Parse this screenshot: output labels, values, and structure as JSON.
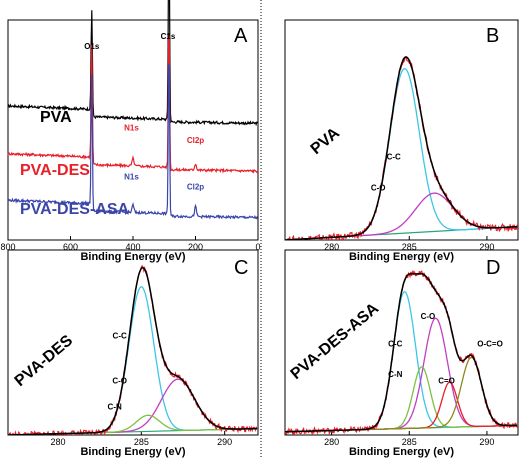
{
  "chart_data": [
    {
      "panel": "A",
      "type": "line",
      "xlabel": "Binding Energy (eV)",
      "xlim": [
        800,
        0
      ],
      "xticks": [
        800,
        600,
        400,
        200,
        0
      ],
      "colors": {
        "PVA": "#000000",
        "PVA-DES": "#e8202a",
        "PVA-DES-ASA": "#3a45a8"
      },
      "series": [
        {
          "name": "PVA",
          "offset": 100,
          "peaks": [
            {
              "x": 532,
              "h": 85,
              "w": 2
            },
            {
              "x": 285,
              "h": 155,
              "w": 2
            }
          ]
        },
        {
          "name": "PVA-DES",
          "offset": 62,
          "peaks": [
            {
              "x": 532,
              "h": 95,
              "w": 2
            },
            {
              "x": 400,
              "h": 6,
              "w": 3
            },
            {
              "x": 285,
              "h": 120,
              "w": 2
            },
            {
              "x": 200,
              "h": 5,
              "w": 3
            }
          ]
        },
        {
          "name": "PVA-DES-ASA",
          "offset": 25,
          "peaks": [
            {
              "x": 532,
              "h": 108,
              "w": 2
            },
            {
              "x": 400,
              "h": 6,
              "w": 3
            },
            {
              "x": 285,
              "h": 135,
              "w": 2
            },
            {
              "x": 200,
              "h": 8,
              "w": 3
            }
          ]
        }
      ],
      "ylim": [
        0,
        175
      ],
      "series_labels": [
        {
          "text": "PVA",
          "series": "PVA"
        },
        {
          "text": "PVA-DES",
          "series": "PVA-DES"
        },
        {
          "text": "PVA-DES-ASA",
          "series": "PVA-DES-ASA"
        }
      ],
      "annotations": [
        {
          "text": "O1s",
          "x": 532,
          "y": 152,
          "color": "#000000"
        },
        {
          "text": "C1s",
          "x": 288,
          "y": 160,
          "color": "#000000"
        },
        {
          "text": "N1s",
          "x": 405,
          "y": 87,
          "color": "#e8202a"
        },
        {
          "text": "Cl2p",
          "x": 200,
          "y": 77,
          "color": "#e8202a"
        },
        {
          "text": "N1s",
          "x": 405,
          "y": 48,
          "color": "#3a45a8"
        },
        {
          "text": "Cl2p",
          "x": 200,
          "y": 40,
          "color": "#3a45a8"
        }
      ]
    },
    {
      "panel": "B",
      "type": "line",
      "xlabel": "Binding Energy (eV)",
      "xlim": [
        277,
        292
      ],
      "xticks": [
        280,
        285,
        290
      ],
      "ylim": [
        0,
        1.15
      ],
      "sample_label": "PVA",
      "components": [
        {
          "name": "C-C",
          "center": 284.7,
          "height": 0.86,
          "sigma": 0.95,
          "color": "#3cc6e8"
        },
        {
          "name": "C-O",
          "center": 286.6,
          "height": 0.2,
          "sigma": 1.2,
          "color": "#c23ec2"
        }
      ],
      "background": {
        "color": "#2aa57a",
        "start": 0.0,
        "end": 0.07
      },
      "envelope_color": "#000000",
      "raw_color": "#e8202a",
      "labels": [
        {
          "text": "C-C",
          "x": 284.0,
          "y": 0.42
        },
        {
          "text": "C-O",
          "x": 283.0,
          "y": 0.26
        }
      ]
    },
    {
      "panel": "C",
      "type": "line",
      "xlabel": "Binding Energy (eV)",
      "xlim": [
        277,
        292
      ],
      "xticks": [
        280,
        285,
        290
      ],
      "ylim": [
        0,
        1.15
      ],
      "sample_label": "PVA-DES",
      "components": [
        {
          "name": "C-C",
          "center": 285.0,
          "height": 0.9,
          "sigma": 0.75,
          "color": "#3cc6e8"
        },
        {
          "name": "C-O",
          "center": 287.2,
          "height": 0.32,
          "sigma": 1.0,
          "color": "#c23ec2"
        },
        {
          "name": "C-N",
          "center": 285.4,
          "height": 0.1,
          "sigma": 0.7,
          "color": "#7cc142"
        }
      ],
      "background": {
        "color": "#2aa57a",
        "start": 0.0,
        "end": 0.04
      },
      "envelope_color": "#000000",
      "raw_color": "#e8202a",
      "labels": [
        {
          "text": "C-C",
          "x": 283.7,
          "y": 0.6
        },
        {
          "text": "C-O",
          "x": 283.7,
          "y": 0.32
        },
        {
          "text": "C-N",
          "x": 283.4,
          "y": 0.16
        }
      ]
    },
    {
      "panel": "D",
      "type": "line",
      "xlabel": "Binding Energy (eV)",
      "xlim": [
        277,
        292
      ],
      "xticks": [
        280,
        285,
        290
      ],
      "ylim": [
        0,
        1.15
      ],
      "sample_label": "PVA-DES-ASA",
      "components": [
        {
          "name": "C-C",
          "center": 284.7,
          "height": 0.85,
          "sigma": 0.7,
          "color": "#3cc6e8"
        },
        {
          "name": "C-O",
          "center": 286.7,
          "height": 0.68,
          "sigma": 0.75,
          "color": "#c23ec2"
        },
        {
          "name": "C-N",
          "center": 285.8,
          "height": 0.38,
          "sigma": 0.55,
          "color": "#7cc142"
        },
        {
          "name": "C=O",
          "center": 287.6,
          "height": 0.28,
          "sigma": 0.5,
          "color": "#e8202a"
        },
        {
          "name": "O-C=O",
          "center": 289.0,
          "height": 0.43,
          "sigma": 0.65,
          "color": "#8a8a1a"
        }
      ],
      "background": {
        "color": "#2aa57a",
        "start": 0.02,
        "end": 0.06
      },
      "envelope_color": "#000000",
      "raw_color": "#e8202a",
      "labels": [
        {
          "text": "C-C",
          "x": 284.1,
          "y": 0.55
        },
        {
          "text": "C-O",
          "x": 286.2,
          "y": 0.72
        },
        {
          "text": "C-N",
          "x": 284.1,
          "y": 0.36
        },
        {
          "text": "C=O",
          "x": 287.4,
          "y": 0.32
        },
        {
          "text": "O-C=O",
          "x": 290.2,
          "y": 0.55
        }
      ]
    }
  ]
}
